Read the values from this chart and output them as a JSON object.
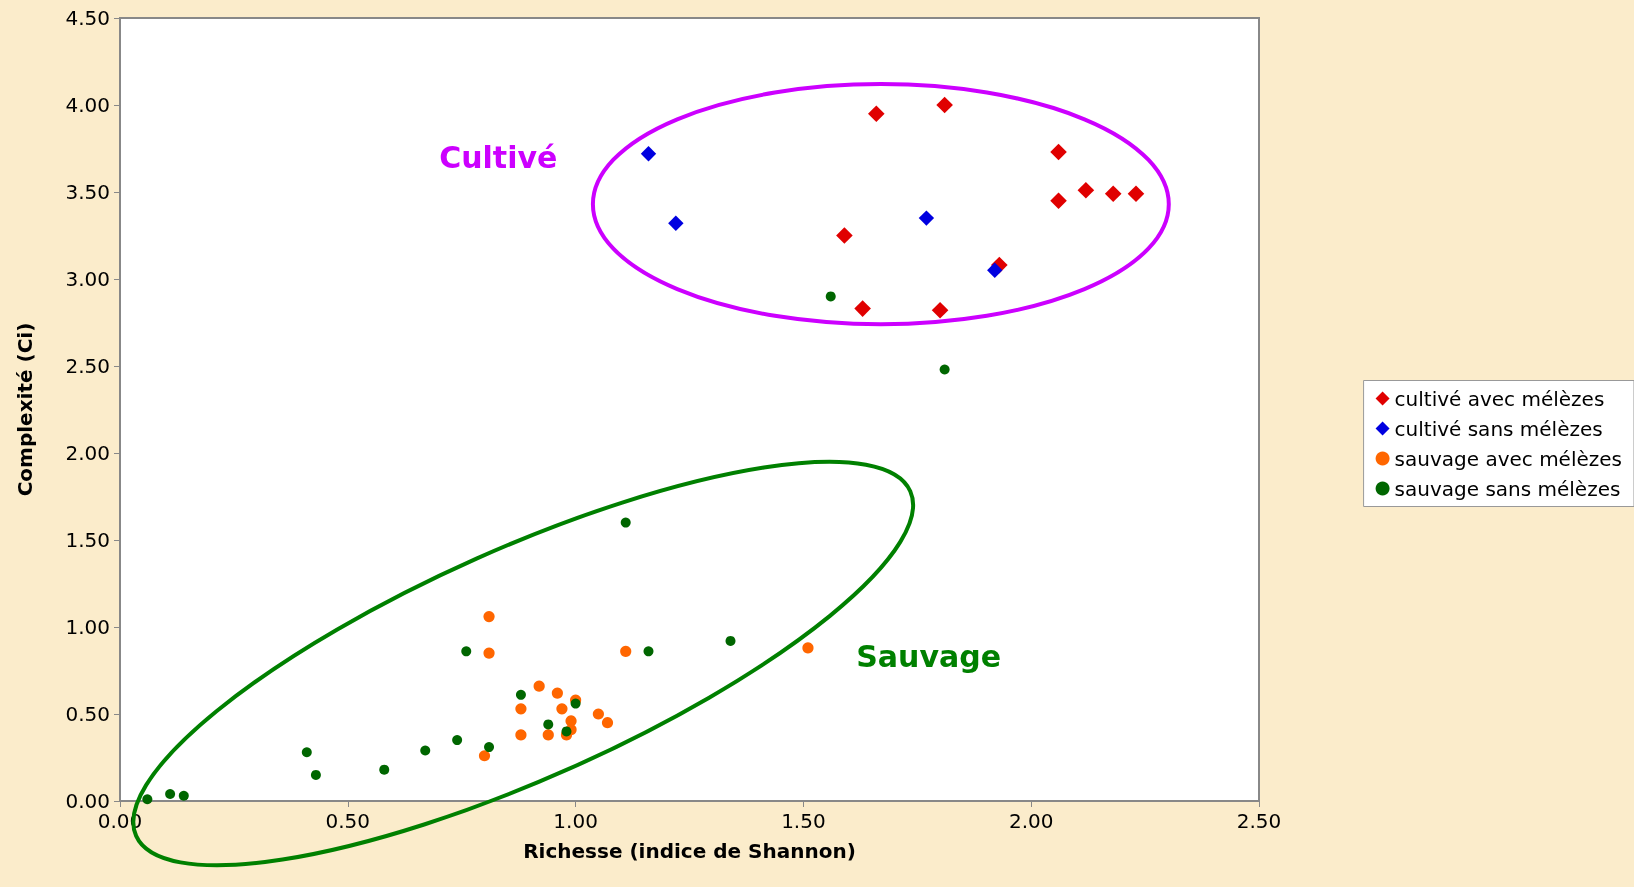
{
  "chart_data": {
    "type": "scatter",
    "xlabel": "Richesse (indice de Shannon)",
    "ylabel": "Complexité (Ci)",
    "xlim": [
      0,
      2.5
    ],
    "xticks": [
      {
        "value": 0,
        "label": "0.00"
      },
      {
        "value": 0.5,
        "label": "0.50"
      },
      {
        "value": 1,
        "label": "1.00"
      },
      {
        "value": 1.5,
        "label": "1.50"
      },
      {
        "value": 2,
        "label": "2.00"
      },
      {
        "value": 2.5,
        "label": "2.50"
      }
    ],
    "ylim": [
      0,
      4.5
    ],
    "yticks": [
      {
        "value": 0,
        "label": "0.00"
      },
      {
        "value": 0.5,
        "label": "0.50"
      },
      {
        "value": 1,
        "label": "1.00"
      },
      {
        "value": 1.5,
        "label": "1.50"
      },
      {
        "value": 2,
        "label": "2.00"
      },
      {
        "value": 2.5,
        "label": "2.50"
      },
      {
        "value": 3,
        "label": "3.00"
      },
      {
        "value": 3.5,
        "label": "3.50"
      },
      {
        "value": 4,
        "label": "4.00"
      },
      {
        "value": 4.5,
        "label": "4.50"
      }
    ],
    "grid": false,
    "legend": "right",
    "annotations": [
      "Cultivé",
      "Sauvage"
    ],
    "series": [
      {
        "name": "cultivé avec mélèzes",
        "color": "#e00000",
        "marker": "diamond",
        "x": [
          1.66,
          1.81,
          2.06,
          2.06,
          2.12,
          2.18,
          2.23,
          1.59,
          1.93,
          1.63,
          1.8
        ],
        "values": [
          3.95,
          4.0,
          3.73,
          3.45,
          3.51,
          3.49,
          3.49,
          3.25,
          3.08,
          2.83,
          2.82
        ]
      },
      {
        "name": "cultivé sans mélèzes",
        "color": "#0000e0",
        "marker": "diamond",
        "x": [
          1.16,
          1.22,
          1.77,
          1.92
        ],
        "values": [
          3.72,
          3.32,
          3.35,
          3.05
        ]
      },
      {
        "name": "sauvage avec mélèzes",
        "color": "#ff6600",
        "marker": "circle",
        "x": [
          0.81,
          0.81,
          1.11,
          1.51,
          0.92,
          0.96,
          1.0,
          0.88,
          0.97,
          0.99,
          1.05,
          1.07,
          0.88,
          0.94,
          0.98,
          0.99,
          0.8
        ],
        "values": [
          1.06,
          0.85,
          0.86,
          0.88,
          0.66,
          0.62,
          0.58,
          0.53,
          0.53,
          0.46,
          0.5,
          0.45,
          0.38,
          0.38,
          0.38,
          0.41,
          0.26
        ]
      },
      {
        "name": "sauvage sans mélèzes",
        "color": "#006600",
        "marker": "circle",
        "x": [
          1.56,
          1.81,
          1.11,
          1.34,
          1.16,
          0.76,
          0.88,
          1.0,
          0.94,
          0.98,
          0.81,
          0.74,
          0.67,
          0.58,
          0.41,
          0.43,
          0.06,
          0.11,
          0.14
        ],
        "values": [
          2.9,
          2.48,
          1.6,
          0.92,
          0.86,
          0.86,
          0.61,
          0.56,
          0.44,
          0.4,
          0.31,
          0.35,
          0.29,
          0.18,
          0.28,
          0.15,
          0.01,
          0.04,
          0.03
        ]
      }
    ]
  }
}
